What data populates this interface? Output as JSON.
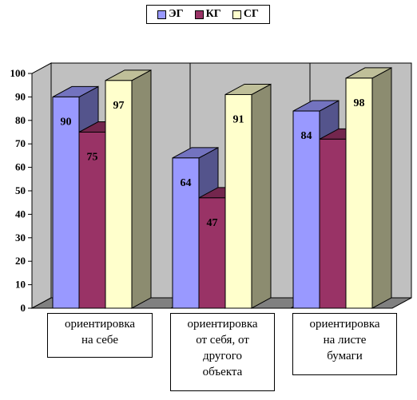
{
  "chart_data": {
    "type": "bar",
    "categories": [
      [
        "ориентировка",
        "на себе"
      ],
      [
        "ориентировка",
        "от себя, от",
        "другого",
        "объекта"
      ],
      [
        "ориентировка",
        "на листе",
        "бумаги"
      ]
    ],
    "series": [
      {
        "name": "ЭГ",
        "values": [
          90,
          64,
          84
        ],
        "color": "#9999ff"
      },
      {
        "name": "КГ",
        "values": [
          75,
          47,
          72
        ],
        "color": "#993366"
      },
      {
        "name": "СГ",
        "values": [
          97,
          91,
          98
        ],
        "color": "#ffffcc"
      }
    ],
    "data_labels": [
      [
        "90",
        "75",
        "97"
      ],
      [
        "64",
        "47",
        "91"
      ],
      [
        "84",
        "",
        "98"
      ]
    ],
    "ylim": [
      0,
      100
    ],
    "yticks": [
      "0",
      "10",
      "20",
      "30",
      "40",
      "50",
      "60",
      "70",
      "80",
      "90",
      "100"
    ],
    "grid": false,
    "legend_position": "top-center",
    "wall_color": "#c0c0c0",
    "floor_color": "#808080"
  }
}
